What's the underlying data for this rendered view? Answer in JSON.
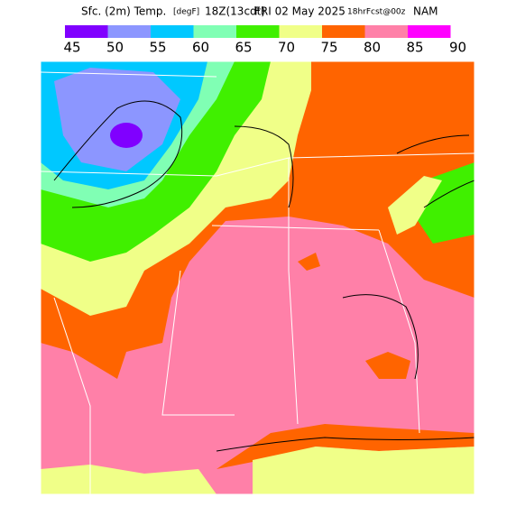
{
  "title": {
    "field": "Sfc. (2m) Temp.",
    "units": "[degF]",
    "valid": "18Z(13cdt)",
    "date": "FRI 02 May 2025",
    "forecast": "18hrFcst@00z",
    "model": "NAM"
  },
  "colorbar": {
    "labels": [
      45,
      50,
      55,
      60,
      65,
      70,
      75,
      80,
      85,
      90
    ],
    "colors": [
      "#8000ff",
      "#8c96ff",
      "#00c8ff",
      "#80ffb4",
      "#40f000",
      "#f0ff88",
      "#ff6400",
      "#ff80a8",
      "#ff00ff"
    ]
  }
}
